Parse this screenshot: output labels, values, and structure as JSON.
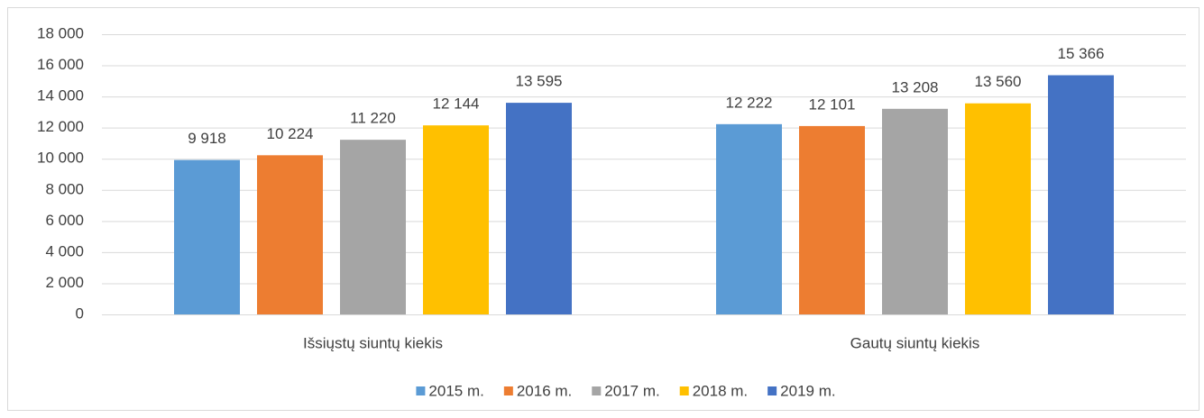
{
  "chart_data": {
    "type": "bar",
    "categories": [
      "Išsiųstų siuntų kiekis",
      "Gautų siuntų kiekis"
    ],
    "series": [
      {
        "name": "2015 m.",
        "color": "#5b9bd5",
        "values": [
          9918,
          12222
        ],
        "value_labels": [
          "9 918",
          "12 222"
        ]
      },
      {
        "name": "2016 m.",
        "color": "#ed7d31",
        "values": [
          10224,
          12101
        ],
        "value_labels": [
          "10 224",
          "12 101"
        ]
      },
      {
        "name": "2017 m.",
        "color": "#a5a5a5",
        "values": [
          11220,
          13208
        ],
        "value_labels": [
          "11 220",
          "13 208"
        ]
      },
      {
        "name": "2018 m.",
        "color": "#ffc000",
        "values": [
          12144,
          13560
        ],
        "value_labels": [
          "12 144",
          "13 560"
        ]
      },
      {
        "name": "2019 m.",
        "color": "#4472c4",
        "values": [
          13595,
          15366
        ],
        "value_labels": [
          "13 595",
          "15 366"
        ]
      }
    ],
    "ylim": [
      0,
      18000
    ],
    "yticks": [
      0,
      {
        "value": 2000,
        "label": "2 000"
      },
      {
        "value": 4000,
        "label": "4 000"
      },
      {
        "value": 6000,
        "label": "6 000"
      },
      {
        "value": 8000,
        "label": "8 000"
      },
      {
        "value": 10000,
        "label": "10 000"
      },
      {
        "value": 12000,
        "label": "12 000"
      },
      {
        "value": 14000,
        "label": "14 000"
      },
      {
        "value": 16000,
        "label": "16 000"
      },
      {
        "value": 18000,
        "label": "18 000"
      }
    ],
    "grid": true,
    "legend": "bottom"
  }
}
